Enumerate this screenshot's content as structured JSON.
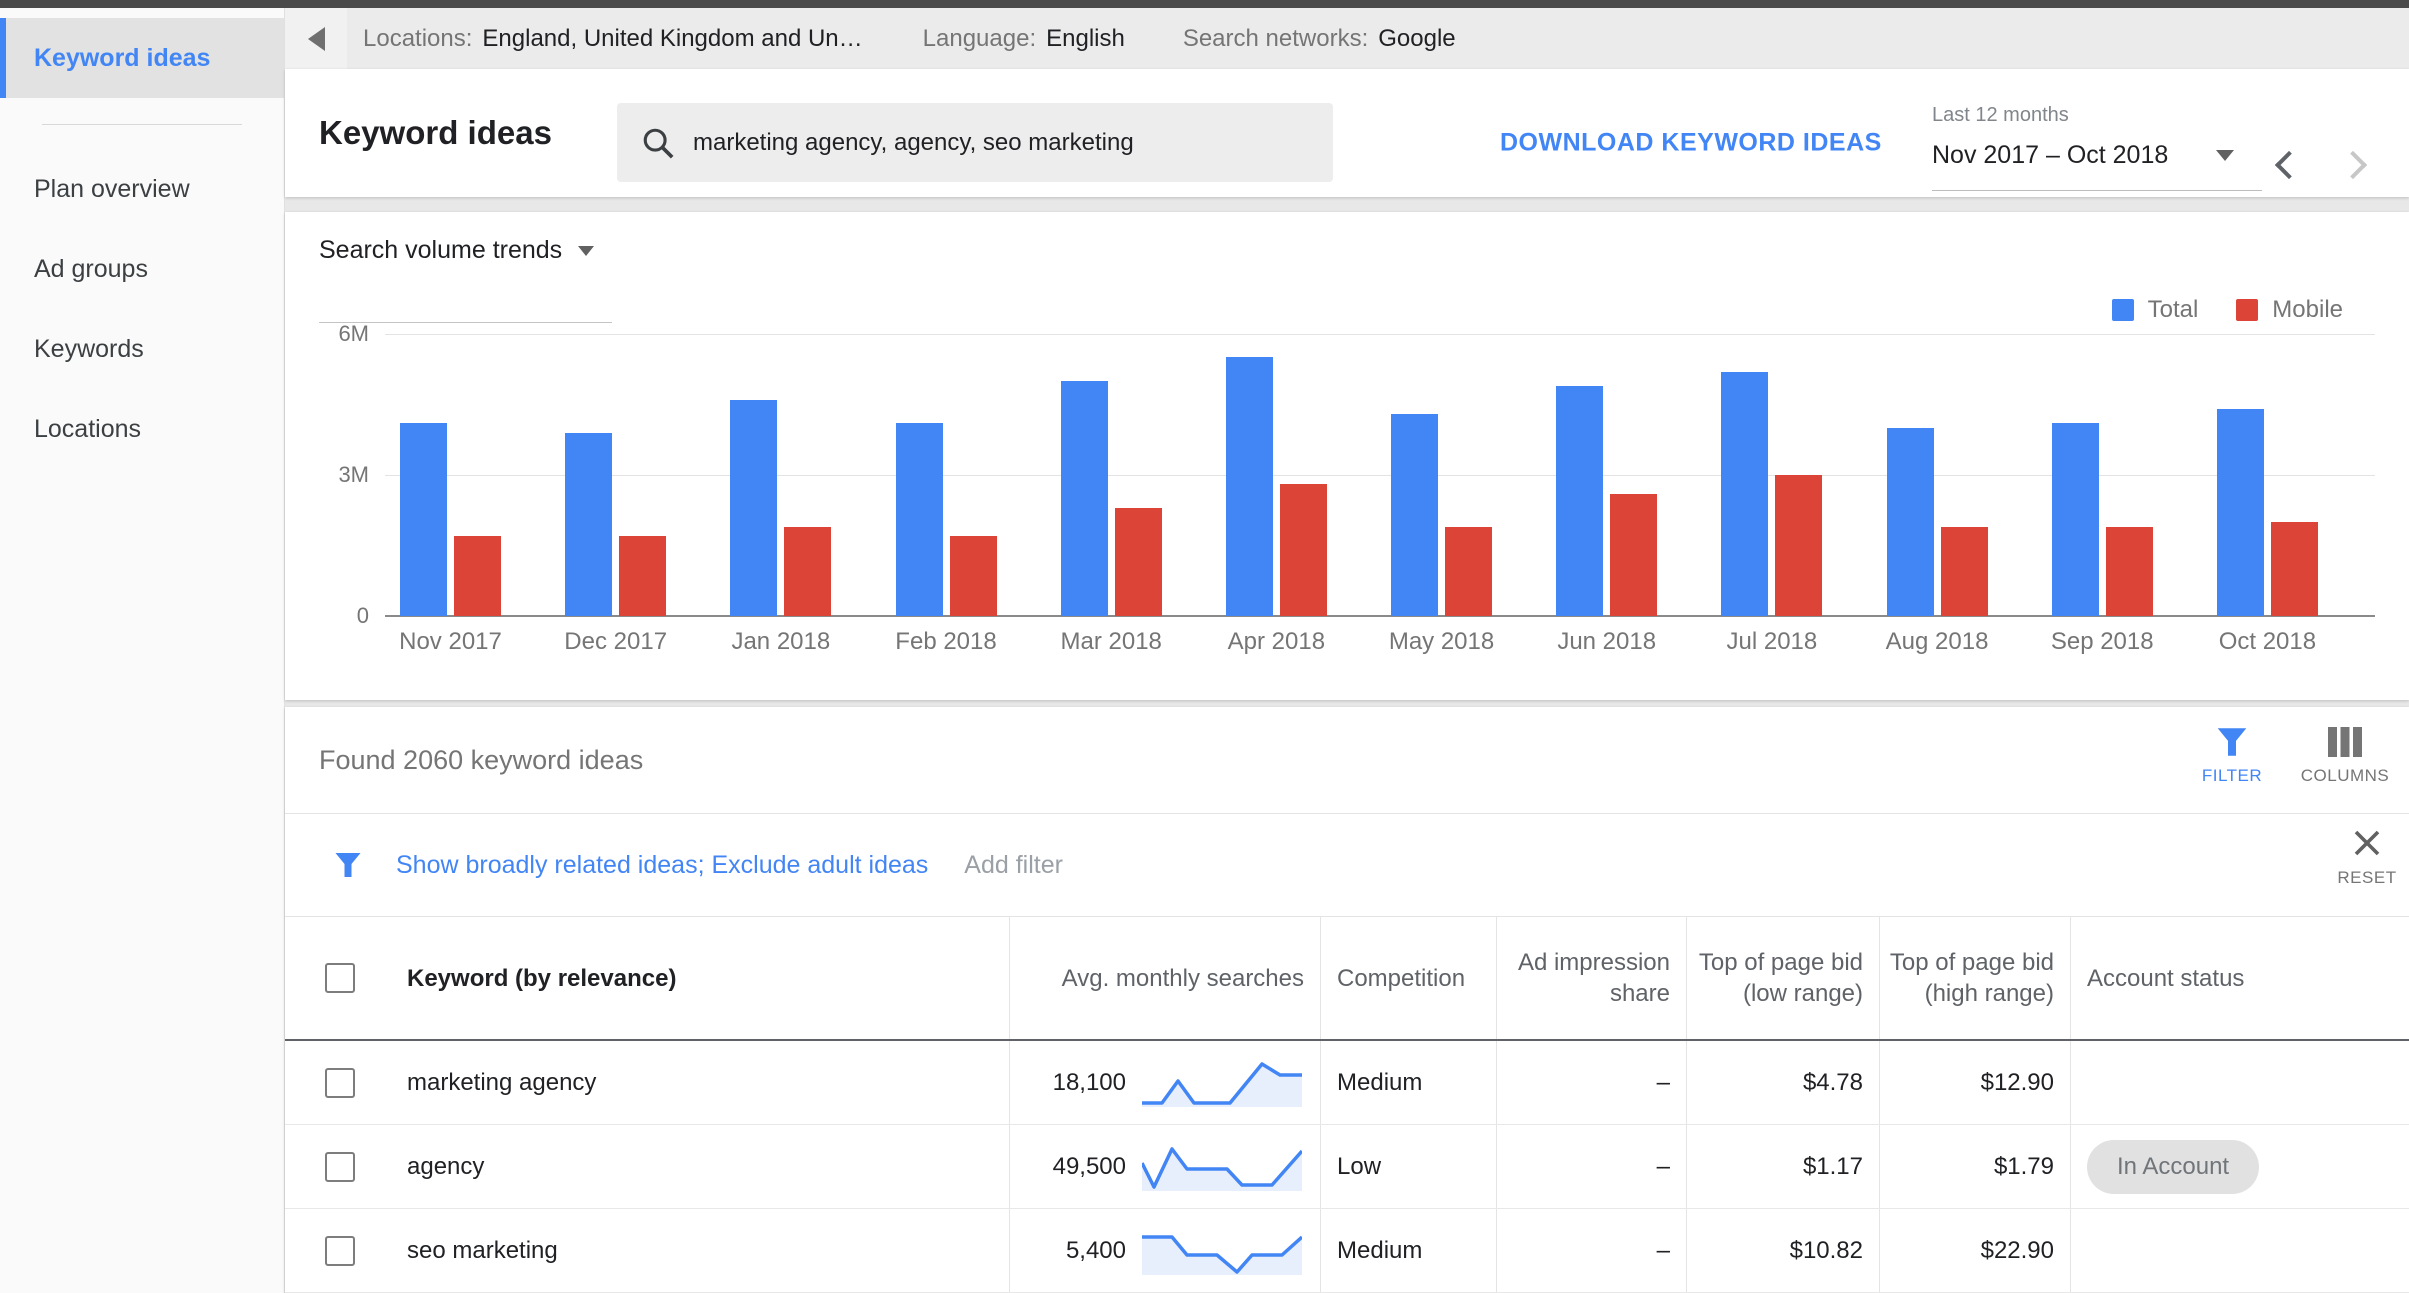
{
  "colors": {
    "blue": "#4285f4",
    "red": "#db4437"
  },
  "sidebar": {
    "active_item": "Keyword ideas",
    "items": [
      "Plan overview",
      "Ad groups",
      "Keywords",
      "Locations"
    ]
  },
  "topbar": {
    "locations_label": "Locations:",
    "locations_value": "England, United Kingdom and Un…",
    "language_label": "Language:",
    "language_value": "English",
    "networks_label": "Search networks:",
    "networks_value": "Google"
  },
  "header": {
    "title": "Keyword ideas",
    "search_value": "marketing agency, agency, seo marketing",
    "download_label": "DOWNLOAD KEYWORD IDEAS",
    "range_label": "Last 12 months",
    "range_value": "Nov 2017 – Oct 2018"
  },
  "chart": {
    "dropdown_label": "Search volume trends"
  },
  "chart_data": {
    "type": "bar",
    "title": "Search volume trends",
    "categories": [
      "Nov 2017",
      "Dec 2017",
      "Jan 2018",
      "Feb 2018",
      "Mar 2018",
      "Apr 2018",
      "May 2018",
      "Jun 2018",
      "Jul 2018",
      "Aug 2018",
      "Sep 2018",
      "Oct 2018"
    ],
    "series": [
      {
        "name": "Total",
        "color": "#4285f4",
        "values": [
          4100000,
          3900000,
          4600000,
          4100000,
          5000000,
          5500000,
          4300000,
          4900000,
          5200000,
          4000000,
          4100000,
          4400000
        ]
      },
      {
        "name": "Mobile",
        "color": "#db4437",
        "values": [
          1700000,
          1700000,
          1900000,
          1700000,
          2300000,
          2800000,
          1900000,
          2600000,
          3000000,
          1900000,
          1900000,
          2000000
        ]
      }
    ],
    "ylim": [
      0,
      6000000
    ],
    "yticks": [
      {
        "label": "6M",
        "value": 6000000
      },
      {
        "label": "3M",
        "value": 3000000
      },
      {
        "label": "0",
        "value": 0
      }
    ],
    "legend_position": "top-right",
    "grid": true
  },
  "results": {
    "found_text": "Found 2060 keyword ideas",
    "filter_label": "FILTER",
    "columns_label": "COLUMNS",
    "filter_chips": "Show broadly related ideas; Exclude adult ideas",
    "add_filter_label": "Add filter",
    "reset_label": "RESET"
  },
  "table": {
    "headers": [
      "Keyword (by relevance)",
      "Avg. monthly searches",
      "Competition",
      "Ad impression share",
      "Top of page bid (low range)",
      "Top of page bid (high range)",
      "Account status"
    ],
    "rows": [
      {
        "keyword": "marketing agency",
        "avg_monthly_searches": "18,100",
        "competition": "Medium",
        "ad_impression_share": "–",
        "top_of_page_bid_low": "$4.78",
        "top_of_page_bid_high": "$12.90",
        "account_status": "",
        "spark": [
          [
            0,
            44
          ],
          [
            20,
            44
          ],
          [
            36,
            22
          ],
          [
            52,
            44
          ],
          [
            88,
            44
          ],
          [
            120,
            5
          ],
          [
            138,
            16
          ],
          [
            160,
            16
          ]
        ]
      },
      {
        "keyword": "agency",
        "avg_monthly_searches": "49,500",
        "competition": "Low",
        "ad_impression_share": "–",
        "top_of_page_bid_low": "$1.17",
        "top_of_page_bid_high": "$1.79",
        "account_status": "In Account",
        "spark": [
          [
            0,
            20
          ],
          [
            12,
            44
          ],
          [
            30,
            6
          ],
          [
            45,
            26
          ],
          [
            85,
            26
          ],
          [
            100,
            42
          ],
          [
            130,
            42
          ],
          [
            160,
            8
          ]
        ]
      },
      {
        "keyword": "seo marketing",
        "avg_monthly_searches": "5,400",
        "competition": "Medium",
        "ad_impression_share": "–",
        "top_of_page_bid_low": "$10.82",
        "top_of_page_bid_high": "$22.90",
        "account_status": "",
        "spark": [
          [
            0,
            10
          ],
          [
            30,
            10
          ],
          [
            45,
            28
          ],
          [
            75,
            28
          ],
          [
            95,
            45
          ],
          [
            110,
            28
          ],
          [
            140,
            28
          ],
          [
            160,
            10
          ]
        ]
      }
    ]
  }
}
